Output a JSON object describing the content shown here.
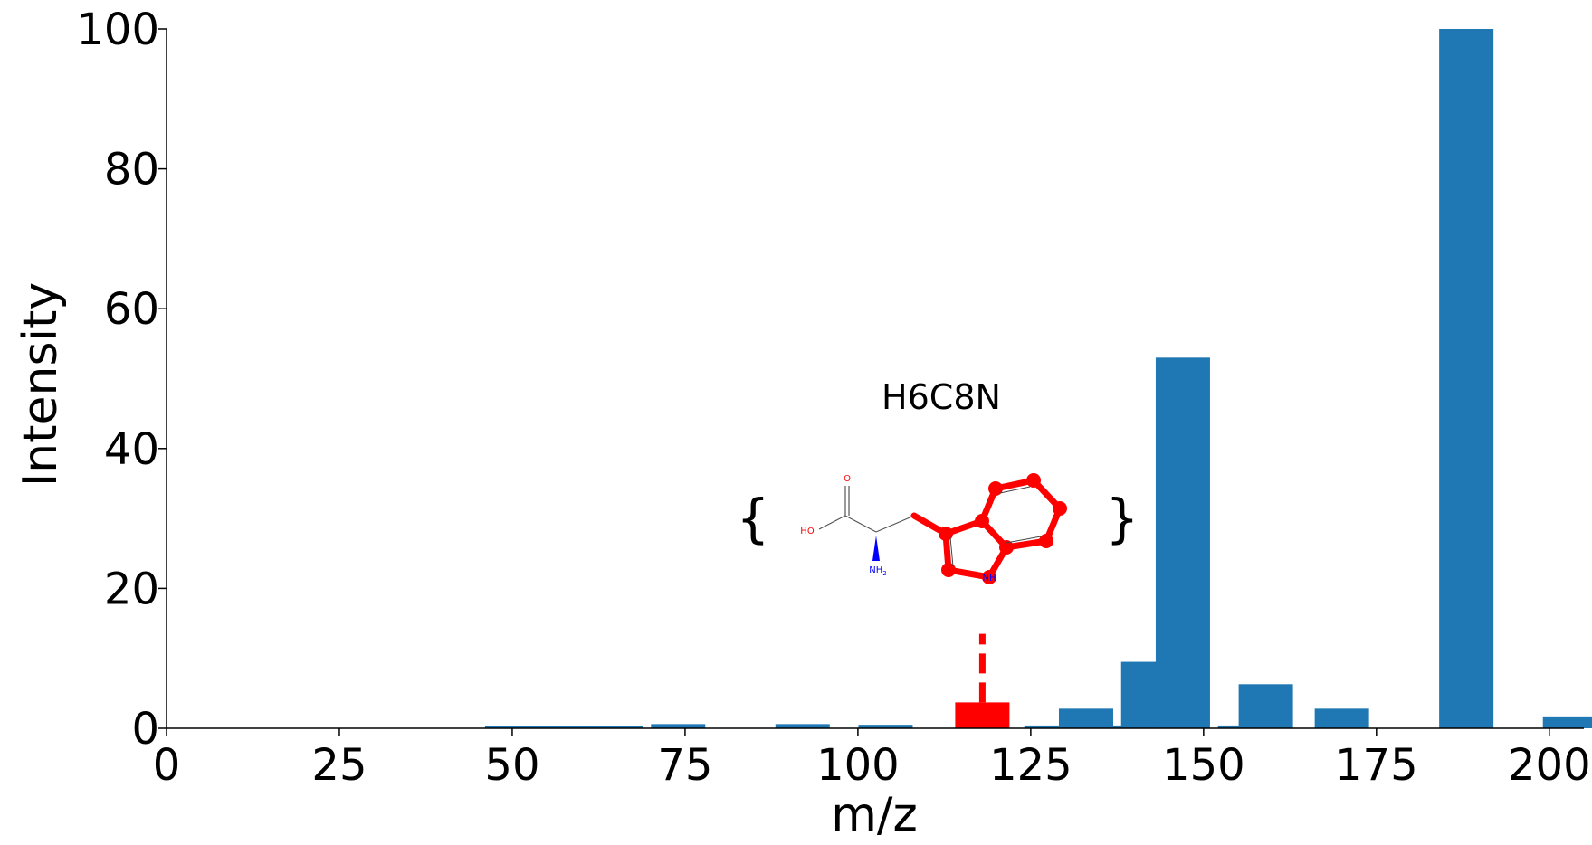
{
  "chart_data": {
    "type": "bar",
    "xlabel": "m/z",
    "ylabel": "Intensity",
    "xlim": [
      0,
      205
    ],
    "ylim": [
      0,
      100
    ],
    "xticks": [
      "0",
      "25",
      "50",
      "75",
      "100",
      "125",
      "150",
      "175",
      "200"
    ],
    "yticks": [
      "0",
      "20",
      "40",
      "60",
      "80",
      "100"
    ],
    "bar_color": "#1f77b4",
    "highlight_color": "#ff0000",
    "bars": [
      {
        "x": 50,
        "y": 0.3
      },
      {
        "x": 55,
        "y": 0.3
      },
      {
        "x": 60,
        "y": 0.3
      },
      {
        "x": 65,
        "y": 0.3
      },
      {
        "x": 74,
        "y": 0.6
      },
      {
        "x": 92,
        "y": 0.6
      },
      {
        "x": 104,
        "y": 0.5
      },
      {
        "x": 128,
        "y": 0.4
      },
      {
        "x": 133,
        "y": 2.8
      },
      {
        "x": 140,
        "y": 0.4
      },
      {
        "x": 142,
        "y": 9.5
      },
      {
        "x": 147,
        "y": 53
      },
      {
        "x": 156,
        "y": 0.4
      },
      {
        "x": 159,
        "y": 6.3
      },
      {
        "x": 170,
        "y": 2.8
      },
      {
        "x": 188,
        "y": 100
      },
      {
        "x": 203,
        "y": 1.7
      }
    ],
    "highlight": {
      "x": 118,
      "y": 3.7,
      "marker_top": 13.5
    },
    "annotation": {
      "formula": "H6C8N",
      "brace_open": "{",
      "brace_close": "}",
      "atom_labels": {
        "o": "O",
        "oh": "HO",
        "nh2": "NH",
        "nh2_sub": "2",
        "nh": "NH"
      }
    }
  }
}
